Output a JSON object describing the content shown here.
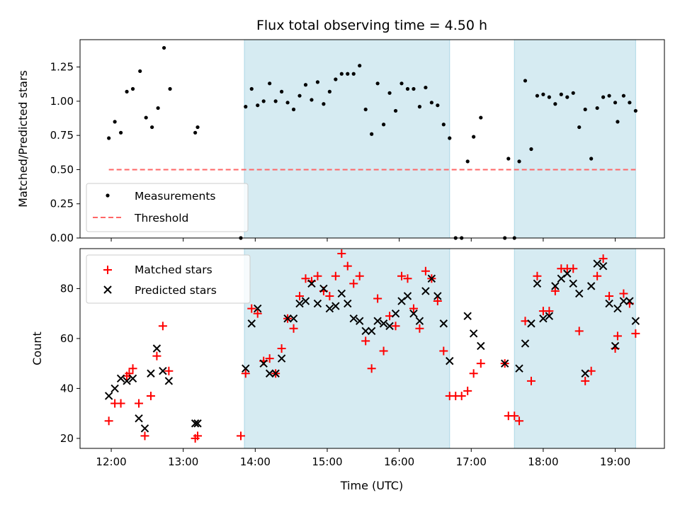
{
  "title": "Flux total observing time = 4.50 h",
  "xlabel": "Time (UTC)",
  "x_ticks": [
    "12:00",
    "13:00",
    "14:00",
    "15:00",
    "16:00",
    "17:00",
    "18:00",
    "19:00"
  ],
  "colors": {
    "shade": "#add8e6",
    "threshold": "#ff6666",
    "matched": "#ff0000",
    "predicted": "#000000",
    "measurement": "#000000"
  },
  "chart_data": [
    {
      "type": "scatter",
      "ylabel": "Matched/Predicted stars",
      "y_ticks": [
        "0.00",
        "0.25",
        "0.50",
        "0.75",
        "1.00",
        "1.25"
      ],
      "ylim": [
        0,
        1.45
      ],
      "xlim": [
        "11:34",
        "19:41"
      ],
      "shaded_intervals": [
        [
          "13:51",
          "16:42"
        ],
        [
          "17:36",
          "19:17"
        ]
      ],
      "legend_position": "lower-left",
      "legend": [
        "Measurements",
        "Threshold"
      ],
      "threshold": 0.5,
      "threshold_x_range": [
        "11:58",
        "19:17"
      ],
      "series": [
        {
          "name": "Measurements",
          "points": [
            [
              "11:58",
              0.73
            ],
            [
              "12:03",
              0.85
            ],
            [
              "12:08",
              0.77
            ],
            [
              "12:13",
              1.07
            ],
            [
              "12:18",
              1.09
            ],
            [
              "12:24",
              1.22
            ],
            [
              "12:29",
              0.88
            ],
            [
              "12:34",
              0.81
            ],
            [
              "12:39",
              0.95
            ],
            [
              "12:44",
              1.39
            ],
            [
              "12:49",
              1.09
            ],
            [
              "13:10",
              0.77
            ],
            [
              "13:12",
              0.81
            ],
            [
              "13:48",
              0.0
            ],
            [
              "13:52",
              0.96
            ],
            [
              "13:57",
              1.09
            ],
            [
              "14:02",
              0.97
            ],
            [
              "14:07",
              1.0
            ],
            [
              "14:12",
              1.13
            ],
            [
              "14:17",
              1.0
            ],
            [
              "14:22",
              1.07
            ],
            [
              "14:27",
              0.99
            ],
            [
              "14:32",
              0.94
            ],
            [
              "14:37",
              1.04
            ],
            [
              "14:42",
              1.12
            ],
            [
              "14:47",
              1.01
            ],
            [
              "14:52",
              1.14
            ],
            [
              "14:57",
              0.98
            ],
            [
              "15:02",
              1.07
            ],
            [
              "15:07",
              1.16
            ],
            [
              "15:12",
              1.2
            ],
            [
              "15:17",
              1.2
            ],
            [
              "15:22",
              1.2
            ],
            [
              "15:27",
              1.26
            ],
            [
              "15:32",
              0.94
            ],
            [
              "15:37",
              0.76
            ],
            [
              "15:42",
              1.13
            ],
            [
              "15:47",
              0.83
            ],
            [
              "15:52",
              1.06
            ],
            [
              "15:57",
              0.93
            ],
            [
              "16:02",
              1.13
            ],
            [
              "16:07",
              1.09
            ],
            [
              "16:12",
              1.09
            ],
            [
              "16:17",
              0.96
            ],
            [
              "16:22",
              1.1
            ],
            [
              "16:27",
              0.99
            ],
            [
              "16:32",
              0.97
            ],
            [
              "16:37",
              0.83
            ],
            [
              "16:42",
              0.73
            ],
            [
              "16:47",
              0.0
            ],
            [
              "16:52",
              0.0
            ],
            [
              "16:57",
              0.56
            ],
            [
              "17:02",
              0.74
            ],
            [
              "17:08",
              0.88
            ],
            [
              "17:28",
              0.0
            ],
            [
              "17:31",
              0.58
            ],
            [
              "17:36",
              0.0
            ],
            [
              "17:40",
              0.56
            ],
            [
              "17:45",
              1.15
            ],
            [
              "17:50",
              0.65
            ],
            [
              "17:55",
              1.04
            ],
            [
              "18:00",
              1.05
            ],
            [
              "18:05",
              1.03
            ],
            [
              "18:10",
              0.98
            ],
            [
              "18:15",
              1.05
            ],
            [
              "18:20",
              1.03
            ],
            [
              "18:25",
              1.06
            ],
            [
              "18:30",
              0.81
            ],
            [
              "18:35",
              0.94
            ],
            [
              "18:40",
              0.58
            ],
            [
              "18:45",
              0.95
            ],
            [
              "18:50",
              1.03
            ],
            [
              "18:55",
              1.04
            ],
            [
              "19:00",
              0.99
            ],
            [
              "19:02",
              0.85
            ],
            [
              "19:07",
              1.04
            ],
            [
              "19:12",
              0.99
            ],
            [
              "19:17",
              0.93
            ]
          ]
        }
      ]
    },
    {
      "type": "scatter",
      "ylabel": "Count",
      "y_ticks": [
        "20",
        "40",
        "60",
        "80"
      ],
      "ylim": [
        16,
        96
      ],
      "xlim": [
        "11:34",
        "19:41"
      ],
      "shaded_intervals": [
        [
          "13:51",
          "16:42"
        ],
        [
          "17:36",
          "19:17"
        ]
      ],
      "legend_position": "upper-left",
      "legend": [
        "Matched stars",
        "Predicted stars"
      ],
      "series": [
        {
          "name": "Matched stars",
          "marker": "plus",
          "points": [
            [
              "11:58",
              27
            ],
            [
              "12:03",
              34
            ],
            [
              "12:08",
              34
            ],
            [
              "12:13",
              45
            ],
            [
              "12:15",
              46
            ],
            [
              "12:18",
              48
            ],
            [
              "12:23",
              34
            ],
            [
              "12:28",
              21
            ],
            [
              "12:33",
              37
            ],
            [
              "12:38",
              53
            ],
            [
              "12:43",
              65
            ],
            [
              "12:48",
              47
            ],
            [
              "13:10",
              20
            ],
            [
              "13:12",
              21
            ],
            [
              "13:48",
              21
            ],
            [
              "13:52",
              46
            ],
            [
              "13:57",
              72
            ],
            [
              "14:02",
              70
            ],
            [
              "14:07",
              51
            ],
            [
              "14:12",
              52
            ],
            [
              "14:17",
              46
            ],
            [
              "14:22",
              56
            ],
            [
              "14:27",
              68
            ],
            [
              "14:32",
              64
            ],
            [
              "14:37",
              77
            ],
            [
              "14:42",
              84
            ],
            [
              "14:47",
              83
            ],
            [
              "14:52",
              85
            ],
            [
              "14:57",
              79
            ],
            [
              "15:02",
              77
            ],
            [
              "15:07",
              85
            ],
            [
              "15:12",
              94
            ],
            [
              "15:17",
              89
            ],
            [
              "15:22",
              82
            ],
            [
              "15:27",
              85
            ],
            [
              "15:32",
              59
            ],
            [
              "15:37",
              48
            ],
            [
              "15:42",
              76
            ],
            [
              "15:47",
              55
            ],
            [
              "15:52",
              69
            ],
            [
              "15:57",
              65
            ],
            [
              "16:02",
              85
            ],
            [
              "16:07",
              84
            ],
            [
              "16:12",
              72
            ],
            [
              "16:17",
              64
            ],
            [
              "16:22",
              87
            ],
            [
              "16:27",
              84
            ],
            [
              "16:32",
              75
            ],
            [
              "16:37",
              55
            ],
            [
              "16:42",
              37
            ],
            [
              "16:47",
              37
            ],
            [
              "16:52",
              37
            ],
            [
              "16:57",
              39
            ],
            [
              "17:02",
              46
            ],
            [
              "17:08",
              50
            ],
            [
              "17:28",
              50
            ],
            [
              "17:31",
              29
            ],
            [
              "17:36",
              29
            ],
            [
              "17:40",
              27
            ],
            [
              "17:45",
              67
            ],
            [
              "17:50",
              43
            ],
            [
              "17:55",
              85
            ],
            [
              "18:00",
              71
            ],
            [
              "18:05",
              71
            ],
            [
              "18:10",
              79
            ],
            [
              "18:15",
              88
            ],
            [
              "18:20",
              88
            ],
            [
              "18:25",
              88
            ],
            [
              "18:30",
              63
            ],
            [
              "18:35",
              43
            ],
            [
              "18:40",
              47
            ],
            [
              "18:45",
              85
            ],
            [
              "18:50",
              92
            ],
            [
              "18:55",
              77
            ],
            [
              "19:00",
              56
            ],
            [
              "19:02",
              61
            ],
            [
              "19:07",
              78
            ],
            [
              "19:12",
              74
            ],
            [
              "19:17",
              62
            ]
          ]
        },
        {
          "name": "Predicted stars",
          "marker": "x",
          "points": [
            [
              "11:58",
              37
            ],
            [
              "12:03",
              40
            ],
            [
              "12:08",
              44
            ],
            [
              "12:13",
              43
            ],
            [
              "12:18",
              44
            ],
            [
              "12:23",
              28
            ],
            [
              "12:28",
              24
            ],
            [
              "12:33",
              46
            ],
            [
              "12:38",
              56
            ],
            [
              "12:43",
              47
            ],
            [
              "12:48",
              43
            ],
            [
              "13:10",
              26
            ],
            [
              "13:12",
              26
            ],
            [
              "13:52",
              48
            ],
            [
              "13:57",
              66
            ],
            [
              "14:02",
              72
            ],
            [
              "14:07",
              50
            ],
            [
              "14:12",
              46
            ],
            [
              "14:17",
              46
            ],
            [
              "14:22",
              52
            ],
            [
              "14:27",
              68
            ],
            [
              "14:32",
              68
            ],
            [
              "14:37",
              74
            ],
            [
              "14:42",
              75
            ],
            [
              "14:47",
              82
            ],
            [
              "14:52",
              74
            ],
            [
              "14:57",
              80
            ],
            [
              "15:02",
              72
            ],
            [
              "15:07",
              73
            ],
            [
              "15:12",
              78
            ],
            [
              "15:17",
              74
            ],
            [
              "15:22",
              68
            ],
            [
              "15:27",
              67
            ],
            [
              "15:32",
              63
            ],
            [
              "15:37",
              63
            ],
            [
              "15:42",
              67
            ],
            [
              "15:47",
              66
            ],
            [
              "15:52",
              65
            ],
            [
              "15:57",
              70
            ],
            [
              "16:02",
              75
            ],
            [
              "16:07",
              77
            ],
            [
              "16:12",
              70
            ],
            [
              "16:17",
              67
            ],
            [
              "16:22",
              79
            ],
            [
              "16:27",
              84
            ],
            [
              "16:32",
              77
            ],
            [
              "16:37",
              66
            ],
            [
              "16:42",
              51
            ],
            [
              "16:57",
              69
            ],
            [
              "17:02",
              62
            ],
            [
              "17:08",
              57
            ],
            [
              "17:28",
              50
            ],
            [
              "17:40",
              48
            ],
            [
              "17:45",
              58
            ],
            [
              "17:50",
              66
            ],
            [
              "17:55",
              82
            ],
            [
              "18:00",
              68
            ],
            [
              "18:05",
              69
            ],
            [
              "18:10",
              81
            ],
            [
              "18:15",
              84
            ],
            [
              "18:20",
              86
            ],
            [
              "18:25",
              82
            ],
            [
              "18:30",
              78
            ],
            [
              "18:35",
              46
            ],
            [
              "18:40",
              81
            ],
            [
              "18:45",
              90
            ],
            [
              "18:50",
              89
            ],
            [
              "18:55",
              74
            ],
            [
              "19:00",
              57
            ],
            [
              "19:02",
              72
            ],
            [
              "19:07",
              75
            ],
            [
              "19:12",
              75
            ],
            [
              "19:17",
              67
            ]
          ]
        }
      ]
    }
  ]
}
